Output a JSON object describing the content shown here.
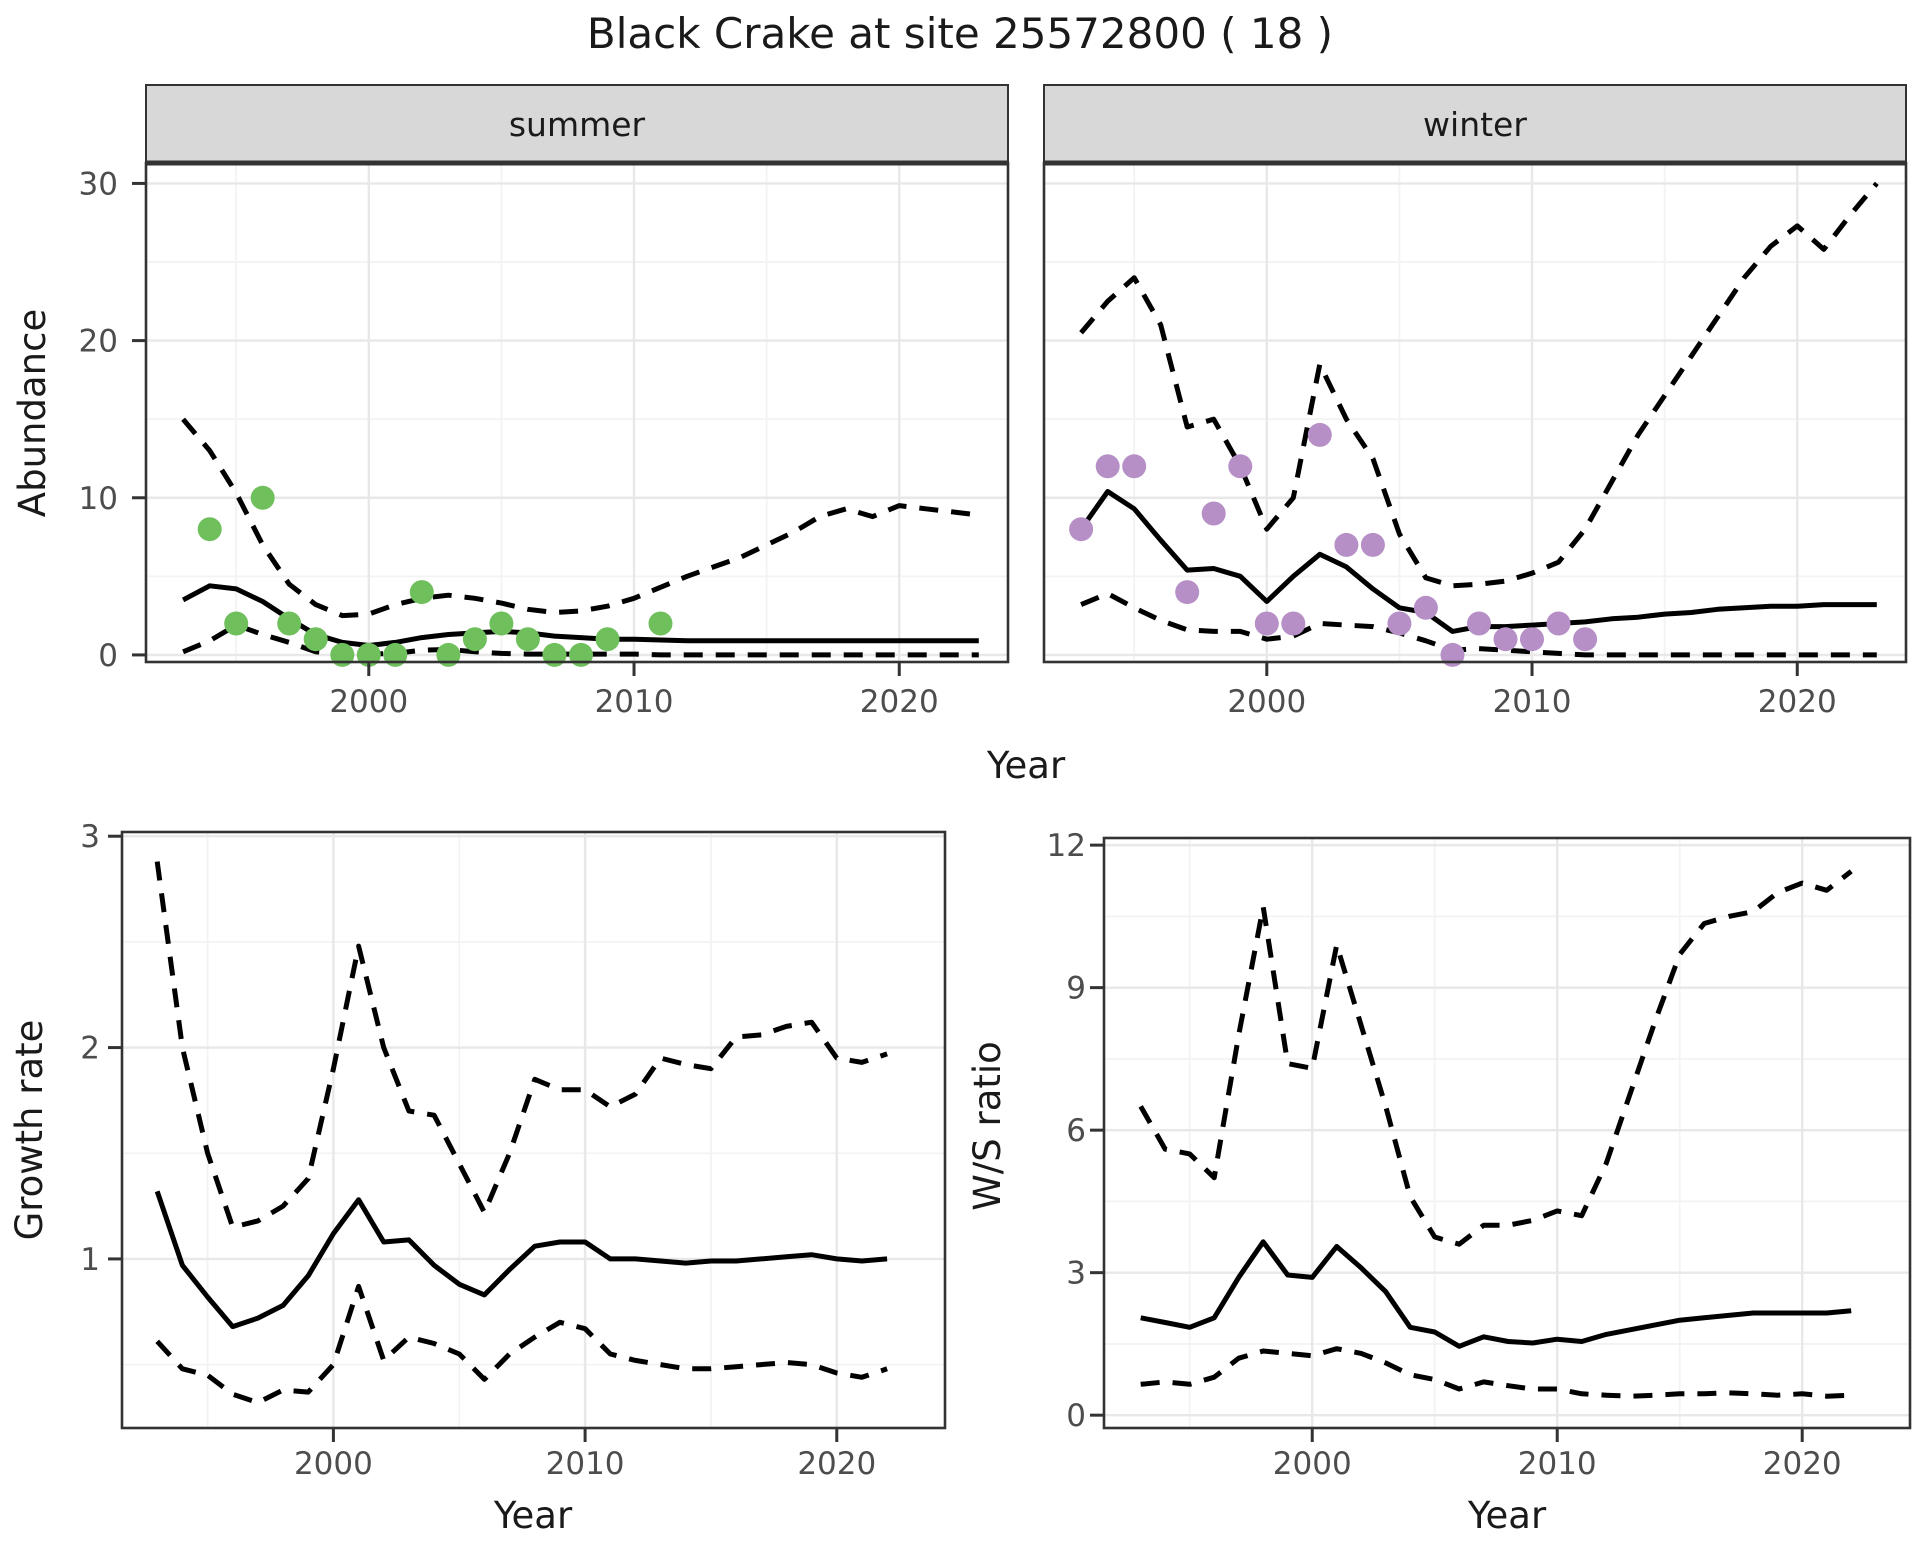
{
  "title": "Black Crake at site 25572800 ( 18 )",
  "colors": {
    "summer_point": "#6FBF5C",
    "winter_point": "#B58FC6",
    "line": "#000000",
    "strip_background": "#D8D8D8",
    "strip_text": "#1A1A1A",
    "panel_border": "#333333",
    "grid_major": "#E8E8E8",
    "grid_minor": "#F3F3F3",
    "tick_label": "#4D4D4D",
    "axis_title": "#1A1A1A",
    "title_text": "#1A1A1A",
    "background": "#FFFFFF"
  },
  "chart_data": [
    {
      "id": "abundance-summer",
      "type": "line",
      "facet_label": "summer",
      "xlabel": "Year",
      "ylabel": "Abundance",
      "legend": "none",
      "grid": true,
      "x_ticks": [
        "2000",
        "2010",
        "2020"
      ],
      "y_ticks": [
        "0",
        "10",
        "20",
        "30"
      ],
      "x_tick_values": [
        2000,
        2010,
        2020
      ],
      "y_tick_values": [
        0,
        10,
        20,
        30
      ],
      "xlim": [
        1991.6,
        2024.1
      ],
      "ylim": [
        -0.45,
        31.3
      ],
      "series": [
        {
          "name": "median",
          "style": "solid",
          "x": [
            1993,
            1994,
            1995,
            1996,
            1997,
            1998,
            1999,
            2000,
            2001,
            2002,
            2003,
            2004,
            2005,
            2006,
            2007,
            2008,
            2009,
            2010,
            2011,
            2012,
            2013,
            2014,
            2015,
            2016,
            2017,
            2018,
            2019,
            2020,
            2021,
            2022,
            2023
          ],
          "y": [
            3.5,
            4.4,
            4.2,
            3.4,
            2.3,
            1.3,
            0.8,
            0.6,
            0.8,
            1.1,
            1.3,
            1.4,
            1.5,
            1.4,
            1.2,
            1.1,
            1.0,
            1.0,
            0.95,
            0.9,
            0.9,
            0.9,
            0.9,
            0.9,
            0.9,
            0.9,
            0.9,
            0.9,
            0.9,
            0.9,
            0.9
          ]
        },
        {
          "name": "upper-ci",
          "style": "dashed",
          "x": [
            1993,
            1994,
            1995,
            1996,
            1997,
            1998,
            1999,
            2000,
            2001,
            2002,
            2003,
            2004,
            2005,
            2006,
            2007,
            2008,
            2009,
            2010,
            2011,
            2012,
            2013,
            2014,
            2015,
            2016,
            2017,
            2018,
            2019,
            2020,
            2021,
            2022,
            2023
          ],
          "y": [
            15,
            13,
            10.3,
            7,
            4.5,
            3.2,
            2.5,
            2.6,
            3.2,
            3.6,
            3.8,
            3.6,
            3.3,
            2.9,
            2.7,
            2.8,
            3.1,
            3.6,
            4.3,
            5.0,
            5.6,
            6.2,
            7.0,
            7.8,
            8.8,
            9.3,
            8.8,
            9.5,
            9.3,
            9.1,
            8.9
          ]
        },
        {
          "name": "lower-ci",
          "style": "dashed",
          "x": [
            1993,
            1994,
            1995,
            1996,
            1997,
            1998,
            1999,
            2000,
            2001,
            2002,
            2003,
            2004,
            2005,
            2006,
            2007,
            2008,
            2009,
            2010,
            2011,
            2012,
            2013,
            2014,
            2015,
            2016,
            2017,
            2018,
            2019,
            2020,
            2021,
            2022,
            2023
          ],
          "y": [
            0.2,
            0.9,
            1.9,
            1.3,
            0.8,
            0.2,
            0.05,
            0.05,
            0.1,
            0.3,
            0.35,
            0.2,
            0.1,
            0.05,
            0.05,
            0.05,
            0.05,
            0.05,
            0,
            0,
            0,
            0,
            0,
            0,
            0,
            0,
            0,
            0,
            0,
            0,
            0
          ]
        }
      ],
      "points": {
        "name": "observed-count-point-summer",
        "color_key": "summer_point",
        "x": [
          1994,
          1995,
          1996,
          1997,
          1998,
          1999,
          2000,
          2001,
          2002,
          2003,
          2004,
          2005,
          2006,
          2007,
          2008,
          2009,
          2011
        ],
        "y": [
          8,
          2,
          10,
          2,
          1,
          0,
          0,
          0,
          4,
          0,
          1,
          2,
          1,
          0,
          0,
          1,
          2
        ]
      }
    },
    {
      "id": "abundance-winter",
      "type": "line",
      "facet_label": "winter",
      "xlabel": "Year",
      "ylabel": "Abundance",
      "legend": "none",
      "grid": true,
      "x_ticks": [
        "2000",
        "2010",
        "2020"
      ],
      "y_ticks": [
        "0",
        "10",
        "20",
        "30"
      ],
      "x_tick_values": [
        2000,
        2010,
        2020
      ],
      "y_tick_values": [
        0,
        10,
        20,
        30
      ],
      "xlim": [
        1991.6,
        2024.1
      ],
      "ylim": [
        -0.45,
        31.3
      ],
      "series": [
        {
          "name": "median",
          "style": "solid",
          "x": [
            1993,
            1994,
            1995,
            1996,
            1997,
            1998,
            1999,
            2000,
            2001,
            2002,
            2003,
            2004,
            2005,
            2006,
            2007,
            2008,
            2009,
            2010,
            2011,
            2012,
            2013,
            2014,
            2015,
            2016,
            2017,
            2018,
            2019,
            2020,
            2021,
            2022,
            2023
          ],
          "y": [
            8.0,
            10.4,
            9.3,
            7.3,
            5.4,
            5.5,
            5.0,
            3.4,
            5.0,
            6.4,
            5.6,
            4.2,
            3.0,
            2.7,
            1.5,
            1.8,
            1.8,
            1.9,
            2.0,
            2.1,
            2.3,
            2.4,
            2.6,
            2.7,
            2.9,
            3.0,
            3.1,
            3.1,
            3.2,
            3.2,
            3.2
          ]
        },
        {
          "name": "upper-ci",
          "style": "dashed",
          "x": [
            1993,
            1994,
            1995,
            1996,
            1997,
            1998,
            1999,
            2000,
            2001,
            2002,
            2003,
            2004,
            2005,
            2006,
            2007,
            2008,
            2009,
            2010,
            2011,
            2012,
            2013,
            2014,
            2015,
            2016,
            2017,
            2018,
            2019,
            2020,
            2021,
            2022,
            2023
          ],
          "y": [
            20.5,
            22.5,
            24,
            21,
            14.5,
            15,
            12,
            8,
            10,
            18.5,
            15,
            12.5,
            7.7,
            4.9,
            4.4,
            4.5,
            4.7,
            5.2,
            5.9,
            8,
            11,
            14,
            16.5,
            19,
            21.5,
            24,
            26,
            27.3,
            25.8,
            28,
            30
          ]
        },
        {
          "name": "lower-ci",
          "style": "dashed",
          "x": [
            1993,
            1994,
            1995,
            1996,
            1997,
            1998,
            1999,
            2000,
            2001,
            2002,
            2003,
            2004,
            2005,
            2006,
            2007,
            2008,
            2009,
            2010,
            2011,
            2012,
            2013,
            2014,
            2015,
            2016,
            2017,
            2018,
            2019,
            2020,
            2021,
            2022,
            2023
          ],
          "y": [
            3.2,
            3.9,
            3.0,
            2.2,
            1.6,
            1.5,
            1.5,
            1.0,
            1.2,
            2.0,
            1.9,
            1.8,
            1.4,
            0.9,
            0.3,
            0.4,
            0.3,
            0.2,
            0.1,
            0,
            0,
            0,
            0,
            0,
            0,
            0,
            0,
            0,
            0,
            0,
            0
          ]
        }
      ],
      "points": {
        "name": "observed-count-point-winter",
        "color_key": "winter_point",
        "x": [
          1993,
          1994,
          1995,
          1997,
          1998,
          1999,
          2000,
          2001,
          2002,
          2003,
          2004,
          2005,
          2006,
          2007,
          2008,
          2009,
          2010,
          2011,
          2012
        ],
        "y": [
          8,
          12,
          12,
          4,
          9,
          12,
          2,
          2,
          14,
          7,
          7,
          2,
          3,
          0,
          2,
          1,
          1,
          2,
          1
        ]
      }
    },
    {
      "id": "growth-rate",
      "type": "line",
      "facet_label": null,
      "xlabel": "Year",
      "ylabel": "Growth rate",
      "legend": "none",
      "grid": true,
      "x_ticks": [
        "2000",
        "2010",
        "2020"
      ],
      "y_ticks": [
        "1",
        "2",
        "3"
      ],
      "x_tick_values": [
        2000,
        2010,
        2020
      ],
      "y_tick_values": [
        1,
        2,
        3
      ],
      "xlim": [
        1991.6,
        2024.3
      ],
      "ylim": [
        0.2,
        3.02
      ],
      "series": [
        {
          "name": "median",
          "style": "solid",
          "x": [
            1993,
            1994,
            1995,
            1996,
            1997,
            1998,
            1999,
            2000,
            2001,
            2002,
            2003,
            2004,
            2005,
            2006,
            2007,
            2008,
            2009,
            2010,
            2011,
            2012,
            2013,
            2014,
            2015,
            2016,
            2017,
            2018,
            2019,
            2020,
            2021,
            2022
          ],
          "y": [
            1.32,
            0.97,
            0.82,
            0.68,
            0.72,
            0.78,
            0.92,
            1.12,
            1.28,
            1.08,
            1.09,
            0.97,
            0.88,
            0.83,
            0.95,
            1.06,
            1.08,
            1.08,
            1.0,
            1.0,
            0.99,
            0.98,
            0.99,
            0.99,
            1.0,
            1.01,
            1.02,
            1.0,
            0.99,
            1.0
          ]
        },
        {
          "name": "upper-ci",
          "style": "dashed",
          "x": [
            1993,
            1994,
            1995,
            1996,
            1997,
            1998,
            1999,
            2000,
            2001,
            2002,
            2003,
            2004,
            2005,
            2006,
            2007,
            2008,
            2009,
            2010,
            2011,
            2012,
            2013,
            2014,
            2015,
            2016,
            2017,
            2018,
            2019,
            2020,
            2021,
            2022
          ],
          "y": [
            2.88,
            2.0,
            1.5,
            1.15,
            1.18,
            1.25,
            1.38,
            1.9,
            2.48,
            2.0,
            1.7,
            1.68,
            1.45,
            1.22,
            1.5,
            1.85,
            1.8,
            1.8,
            1.72,
            1.78,
            1.95,
            1.92,
            1.9,
            2.05,
            2.06,
            2.1,
            2.12,
            1.95,
            1.93,
            1.97
          ]
        },
        {
          "name": "lower-ci",
          "style": "dashed",
          "x": [
            1993,
            1994,
            1995,
            1996,
            1997,
            1998,
            1999,
            2000,
            2001,
            2002,
            2003,
            2004,
            2005,
            2006,
            2007,
            2008,
            2009,
            2010,
            2011,
            2012,
            2013,
            2014,
            2015,
            2016,
            2017,
            2018,
            2019,
            2020,
            2021,
            2022
          ],
          "y": [
            0.61,
            0.48,
            0.45,
            0.36,
            0.32,
            0.38,
            0.37,
            0.5,
            0.87,
            0.52,
            0.63,
            0.6,
            0.55,
            0.43,
            0.55,
            0.63,
            0.7,
            0.67,
            0.55,
            0.52,
            0.5,
            0.48,
            0.48,
            0.49,
            0.5,
            0.51,
            0.5,
            0.46,
            0.44,
            0.48
          ]
        }
      ],
      "points": null
    },
    {
      "id": "ws-ratio",
      "type": "line",
      "facet_label": null,
      "xlabel": "Year",
      "ylabel": "W/S ratio",
      "legend": "none",
      "grid": true,
      "x_ticks": [
        "2000",
        "2010",
        "2020"
      ],
      "y_ticks": [
        "0",
        "3",
        "6",
        "9",
        "12"
      ],
      "x_tick_values": [
        2000,
        2010,
        2020
      ],
      "y_tick_values": [
        0,
        3,
        6,
        9,
        12
      ],
      "xlim": [
        1991.5,
        2024.4
      ],
      "ylim": [
        -0.27,
        12.15
      ],
      "series": [
        {
          "name": "median",
          "style": "solid",
          "x": [
            1993,
            1994,
            1995,
            1996,
            1997,
            1998,
            1999,
            2000,
            2001,
            2002,
            2003,
            2004,
            2005,
            2006,
            2007,
            2008,
            2009,
            2010,
            2011,
            2012,
            2013,
            2014,
            2015,
            2016,
            2017,
            2018,
            2019,
            2020,
            2021,
            2022
          ],
          "y": [
            2.05,
            1.95,
            1.85,
            2.05,
            2.9,
            3.65,
            2.95,
            2.9,
            3.55,
            3.1,
            2.6,
            1.85,
            1.75,
            1.45,
            1.65,
            1.55,
            1.52,
            1.6,
            1.55,
            1.7,
            1.8,
            1.9,
            2.0,
            2.05,
            2.1,
            2.15,
            2.15,
            2.15,
            2.15,
            2.2
          ]
        },
        {
          "name": "upper-ci",
          "style": "dashed",
          "x": [
            1993,
            1994,
            1995,
            1996,
            1997,
            1998,
            1999,
            2000,
            2001,
            2002,
            2003,
            2004,
            2005,
            2006,
            2007,
            2008,
            2009,
            2010,
            2011,
            2012,
            2013,
            2014,
            2015,
            2016,
            2017,
            2018,
            2019,
            2020,
            2021,
            2022
          ],
          "y": [
            6.5,
            5.6,
            5.5,
            5.0,
            8.0,
            10.7,
            7.4,
            7.3,
            9.9,
            8.2,
            6.5,
            4.6,
            3.75,
            3.6,
            4.0,
            4.0,
            4.1,
            4.3,
            4.2,
            5.3,
            6.8,
            8.3,
            9.7,
            10.35,
            10.5,
            10.6,
            11.0,
            11.2,
            11.05,
            11.45
          ]
        },
        {
          "name": "lower-ci",
          "style": "dashed",
          "x": [
            1993,
            1994,
            1995,
            1996,
            1997,
            1998,
            1999,
            2000,
            2001,
            2002,
            2003,
            2004,
            2005,
            2006,
            2007,
            2008,
            2009,
            2010,
            2011,
            2012,
            2013,
            2014,
            2015,
            2016,
            2017,
            2018,
            2019,
            2020,
            2021,
            2022
          ],
          "y": [
            0.65,
            0.7,
            0.65,
            0.8,
            1.2,
            1.35,
            1.3,
            1.25,
            1.4,
            1.3,
            1.1,
            0.85,
            0.75,
            0.55,
            0.7,
            0.62,
            0.55,
            0.55,
            0.45,
            0.42,
            0.4,
            0.42,
            0.45,
            0.45,
            0.47,
            0.45,
            0.42,
            0.45,
            0.4,
            0.42
          ]
        }
      ],
      "points": null
    }
  ]
}
